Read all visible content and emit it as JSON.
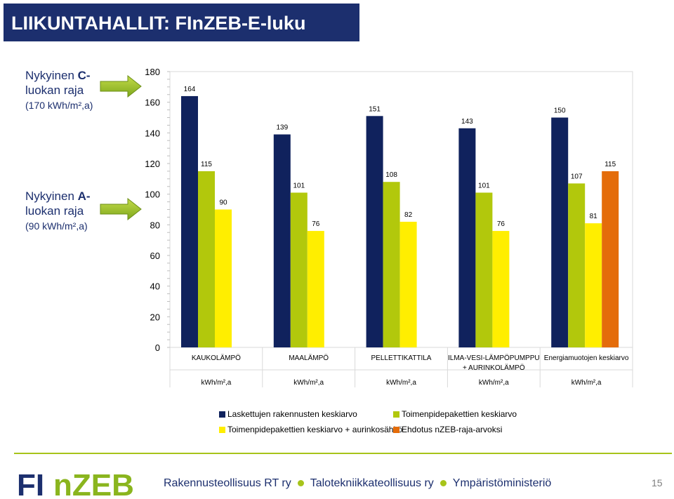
{
  "header": {
    "title": "LIIKUNTAHALLIT: FInZEB-E-luku"
  },
  "side_labels": {
    "c_class": {
      "prefix": "Nykyinen ",
      "bold": "C-",
      "line2": "luokan raja",
      "sub": "(170 kWh/m²,a)"
    },
    "a_class": {
      "prefix": "Nykyinen ",
      "bold": "A-",
      "line2": "luokan raja",
      "sub": "(90 kWh/m²,a)"
    },
    "arrow_color": "#7ea71c"
  },
  "chart_data": {
    "type": "bar",
    "categories": [
      "KAUKOLÄMPÖ",
      "MAALÄMPÖ",
      "PELLETTIKATTILA",
      "ILMA-VESI-LÄMPÖPUMPPU + AURINKOLÄMPÖ",
      "Energiamuotojen keskiarvo"
    ],
    "category_lines": [
      [
        "KAUKOLÄMPÖ"
      ],
      [
        "MAALÄMPÖ"
      ],
      [
        "PELLETTIKATTILA"
      ],
      [
        "ILMA-VESI-LÄMPÖPUMPPU",
        "+ AURINKOLÄMPÖ"
      ],
      [
        "Energiamuotojen keskiarvo"
      ]
    ],
    "units": [
      "kWh/m²,a",
      "kWh/m²,a",
      "kWh/m²,a",
      "kWh/m²,a",
      "kWh/m²,a"
    ],
    "series": [
      {
        "name": "Laskettujen rakennusten keskiarvo",
        "color": "#10225d",
        "values": [
          164,
          139,
          151,
          143,
          150
        ]
      },
      {
        "name": "Toimenpidepakettien keskiarvo",
        "color": "#b2c80c",
        "values": [
          115,
          101,
          108,
          101,
          107
        ]
      },
      {
        "name": "Toimenpidepakettien keskiarvo + aurinkosähkö",
        "color": "#ffee00",
        "values": [
          90,
          76,
          82,
          76,
          81
        ]
      },
      {
        "name": "Ehdotus nZEB-raja-arvoksi",
        "color": "#e46c0a",
        "values": [
          null,
          null,
          null,
          null,
          115
        ]
      }
    ],
    "yticks": [
      0,
      20,
      40,
      60,
      80,
      100,
      120,
      140,
      160,
      180
    ],
    "ylim": [
      0,
      180
    ],
    "grid": false,
    "legend_position": "bottom",
    "xlabel": "",
    "ylabel": "",
    "title": ""
  },
  "footer": {
    "logo": "FInZEB",
    "logo_colors": {
      "fi": "#1c2f6e",
      "nzeb": "#8ab51e"
    },
    "org1": "Rakennusteollisuus RT ry",
    "org2": "Talotekniikkateollisuus ry",
    "org3": "Ympäristöministeriö",
    "page_number": "15"
  }
}
